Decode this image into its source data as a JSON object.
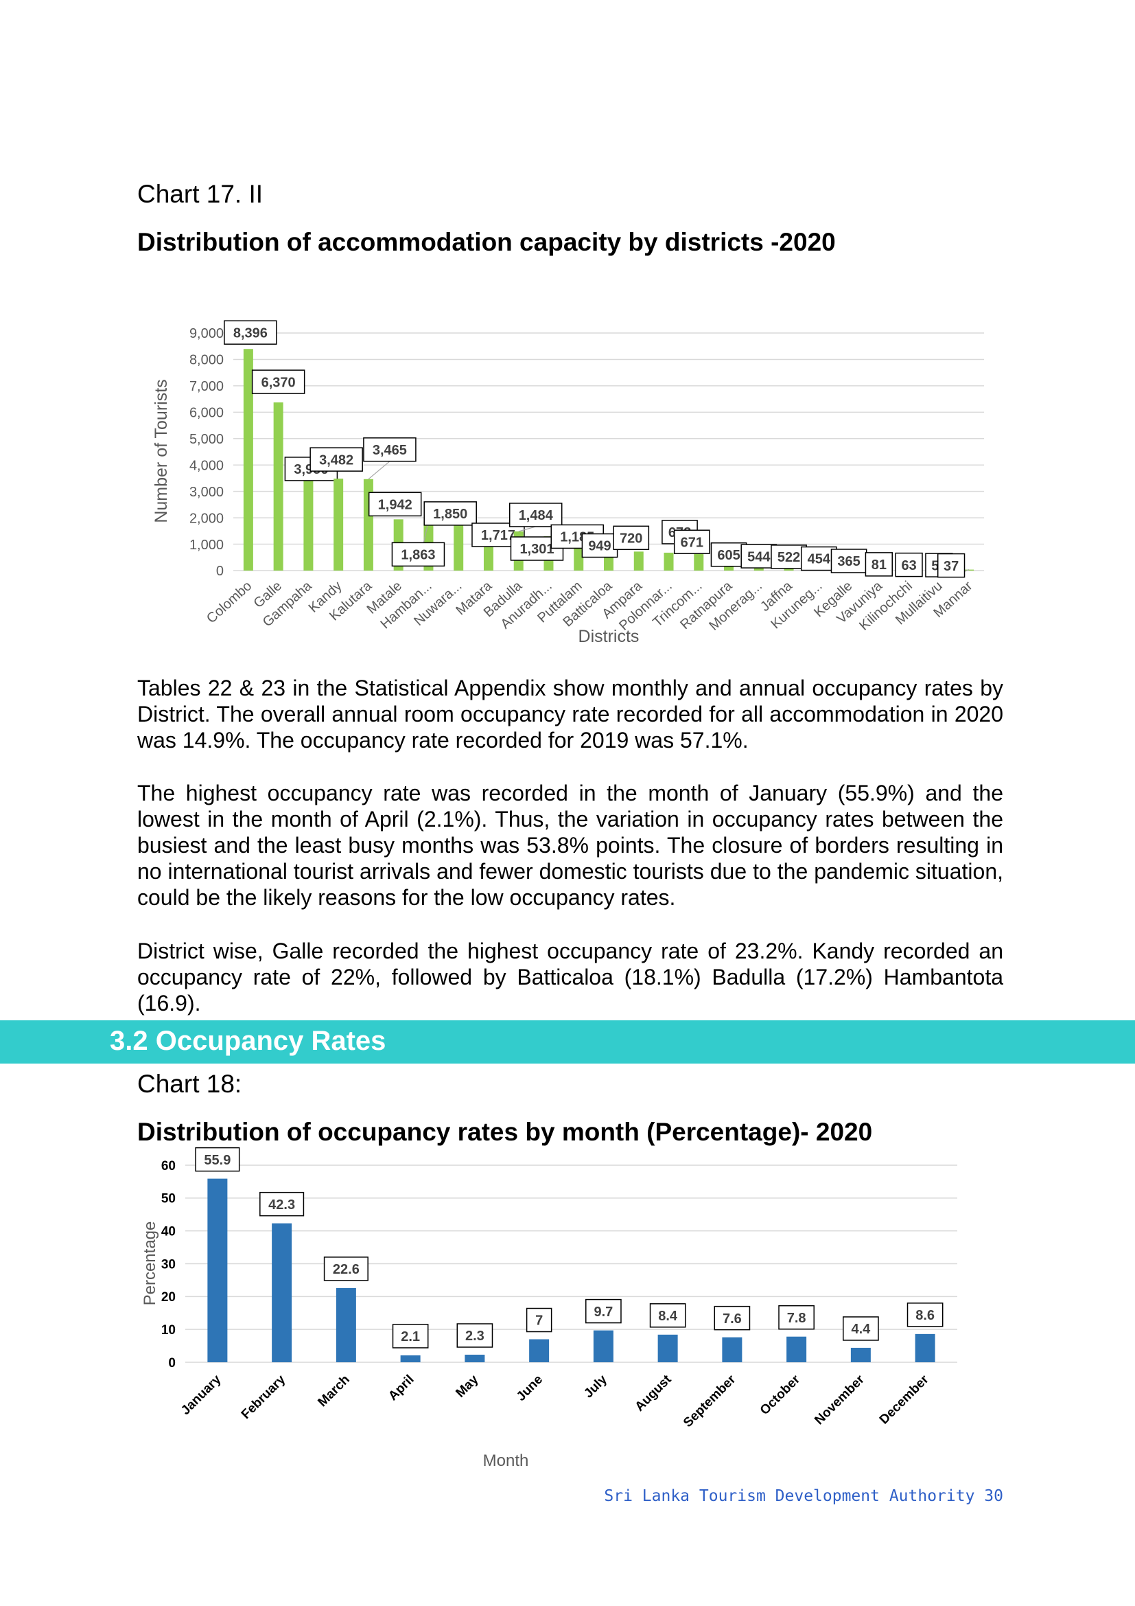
{
  "chart17": {
    "label": "Chart 17. II",
    "title": "Distribution of accommodation capacity by districts -2020"
  },
  "paragraphs": {
    "p1": "Tables 22 & 23 in the Statistical Appendix show monthly and annual occupancy rates by District. The overall annual room occupancy rate recorded for all accommodation in 2020 was 14.9%. The occupancy rate recorded for 2019 was 57.1%.",
    "p2": "The highest occupancy rate was recorded in the month of January (55.9%) and the lowest in the month of April (2.1%). Thus, the variation in occupancy rates between the busiest and the least busy months was 53.8% points. The closure of borders resulting in no international tourist arrivals and fewer domestic tourists due to the pandemic situation, could be the likely reasons for the low occupancy rates.",
    "p3": "District wise, Galle recorded the highest occupancy rate of 23.2%. Kandy recorded an occupancy rate of 22%, followed by Batticaloa (18.1%) Badulla (17.2%) Hambantota (16.9)."
  },
  "section": {
    "heading": "3.2 Occupancy Rates"
  },
  "chart18": {
    "label": "Chart 18:",
    "title": "Distribution of occupancy rates by month (Percentage)- 2020"
  },
  "footer": {
    "text": "Sri Lanka Tourism Development Authority 30"
  },
  "chart_data": [
    {
      "type": "bar",
      "xlabel": "Districts",
      "ylabel": "Number of Tourists",
      "ylim": [
        0,
        9000
      ],
      "yticks": [
        "0",
        "1,000",
        "2,000",
        "3,000",
        "4,000",
        "5,000",
        "6,000",
        "7,000",
        "8,000",
        "9,000"
      ],
      "categories": [
        "Colombo",
        "Galle",
        "Gampaha",
        "Kandy",
        "Kalutara",
        "Matale",
        "Hamban...",
        "Nuwara...",
        "Matara",
        "Badulla",
        "Anuradh...",
        "Puttalam",
        "Batticaloa",
        "Ampara",
        "Polonnar...",
        "Trincom...",
        "Ratnapura",
        "Monerag...",
        "Jaffna",
        "Kuruneg...",
        "Kegalle",
        "Vavuniya",
        "Kilinochchi",
        "Mullaitivu",
        "Mannar"
      ],
      "values": [
        8396,
        6370,
        3956,
        3482,
        3465,
        1942,
        1863,
        1850,
        1717,
        1484,
        1301,
        1185,
        949,
        720,
        678,
        671,
        605,
        544,
        522,
        454,
        365,
        81,
        63,
        50,
        37
      ],
      "data_labels": [
        "8,396",
        "6,370",
        "3,956",
        "3,482",
        "3,465",
        "1,942",
        "1,863",
        "1,850",
        "1,717",
        "1,484",
        "1,301",
        "1,185",
        "949",
        "720",
        "678",
        "671",
        "605",
        "544",
        "522",
        "454",
        "365",
        "81",
        "63",
        "50",
        "37"
      ],
      "grid": true,
      "color": "#92d050"
    },
    {
      "type": "bar",
      "xlabel": "Month",
      "ylabel": "Percentage",
      "ylim": [
        0,
        60
      ],
      "yticks": [
        "0",
        "10",
        "20",
        "30",
        "40",
        "50",
        "60"
      ],
      "categories": [
        "January",
        "February",
        "March",
        "April",
        "May",
        "June",
        "July",
        "August",
        "September",
        "October",
        "November",
        "December"
      ],
      "values": [
        55.9,
        42.3,
        22.6,
        2.1,
        2.3,
        7,
        9.7,
        8.4,
        7.6,
        7.8,
        4.4,
        8.6
      ],
      "data_labels": [
        "55.9",
        "42.3",
        "22.6",
        "2.1",
        "2.3",
        "7",
        "9.7",
        "8.4",
        "7.6",
        "7.8",
        "4.4",
        "8.6"
      ],
      "grid": true,
      "color": "#2e75b6"
    }
  ]
}
